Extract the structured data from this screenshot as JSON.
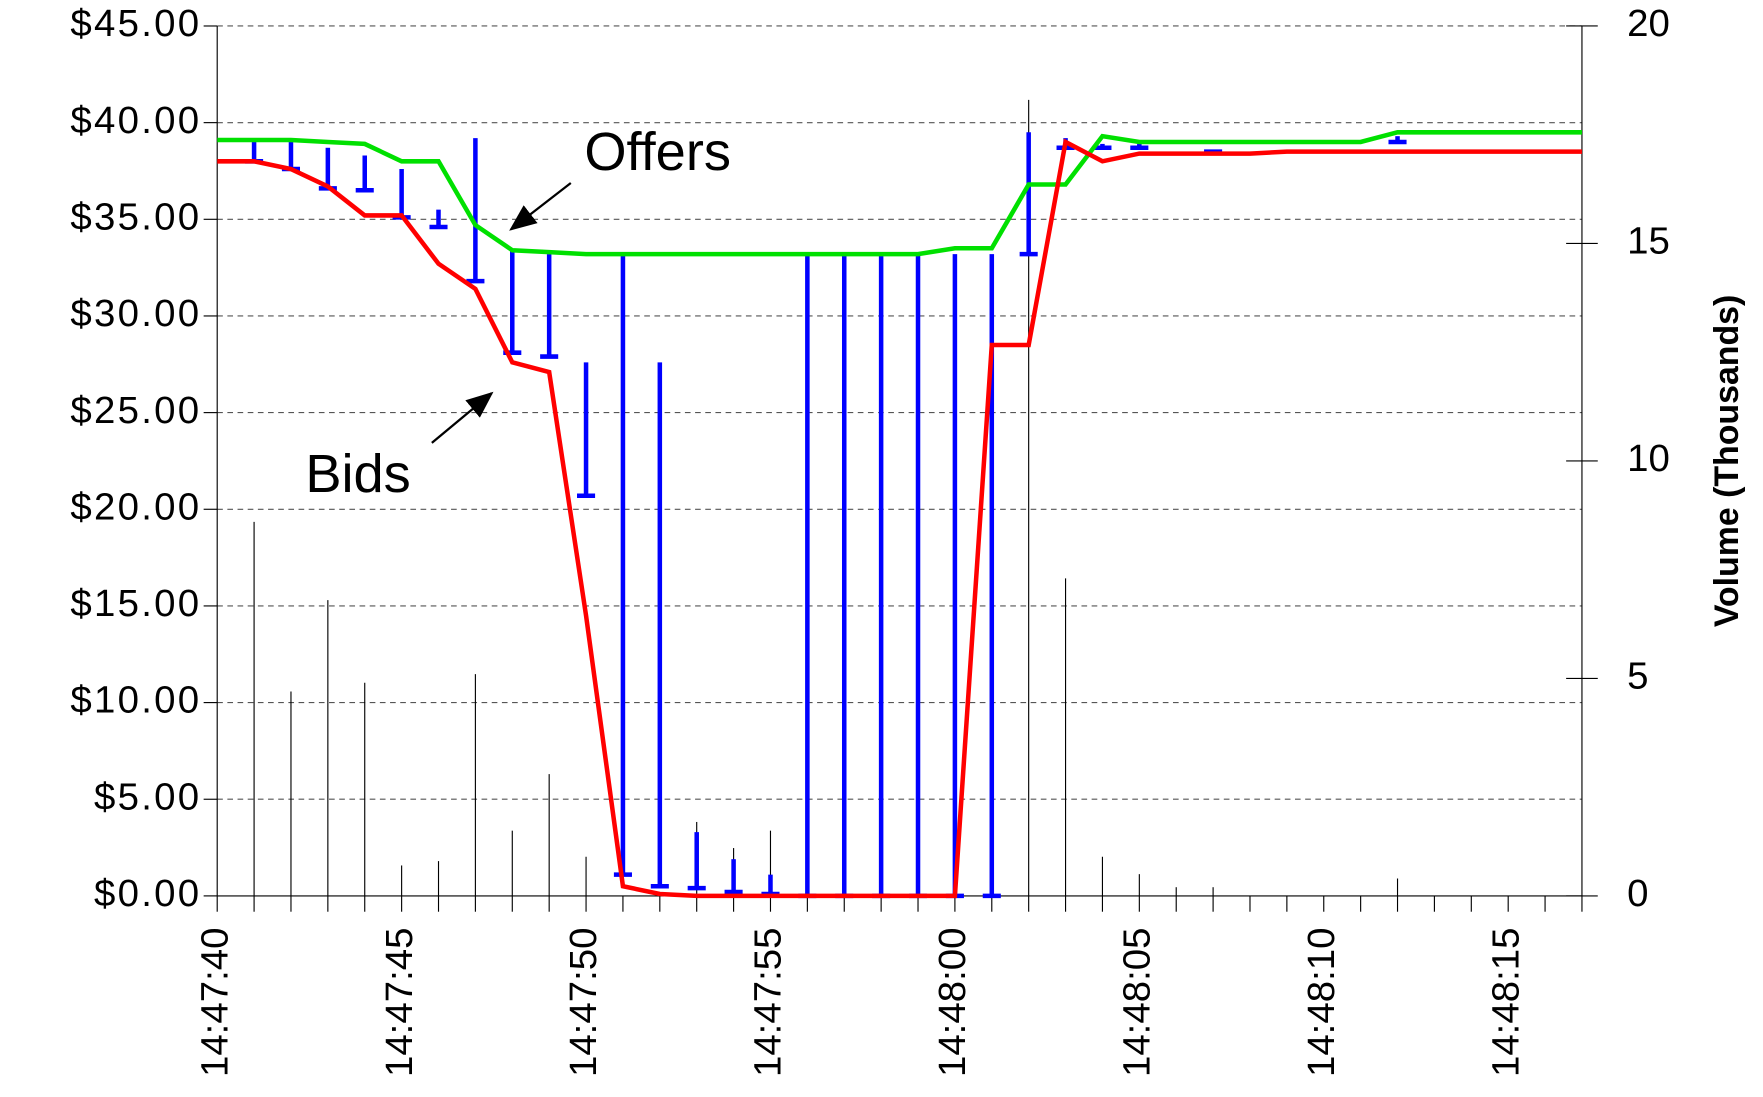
{
  "chart_data": {
    "type": "line",
    "categories": [
      "14:47:40",
      null,
      null,
      null,
      null,
      "14:47:45",
      null,
      null,
      null,
      null,
      "14:47:50",
      null,
      null,
      null,
      null,
      "14:47:55",
      null,
      null,
      null,
      null,
      "14:48:00",
      null,
      null,
      null,
      null,
      "14:48:05",
      null,
      null,
      null,
      null,
      "14:48:10",
      null,
      null,
      null,
      null,
      "14:48:15",
      null,
      null
    ],
    "series": [
      {
        "name": "Offers",
        "color": "#00e000",
        "values": [
          39.1,
          39.1,
          39.1,
          39.0,
          38.9,
          38.0,
          38.0,
          34.7,
          33.4,
          33.3,
          33.2,
          33.2,
          33.2,
          33.2,
          33.2,
          33.2,
          33.2,
          33.2,
          33.2,
          33.2,
          33.5,
          33.5,
          36.8,
          36.8,
          39.3,
          39.0,
          39.0,
          39.0,
          39.0,
          39.0,
          39.0,
          39.0,
          39.5,
          39.5,
          39.5,
          39.5,
          39.5,
          39.5
        ]
      },
      {
        "name": "Bids",
        "color": "#ff0000",
        "values": [
          38.0,
          38.0,
          37.6,
          36.7,
          35.2,
          35.2,
          32.7,
          31.4,
          27.6,
          27.1,
          14.5,
          0.5,
          0.1,
          0,
          0,
          0,
          0,
          0,
          0,
          0,
          0,
          28.5,
          28.5,
          39.0,
          38.0,
          38.4,
          38.4,
          38.4,
          38.4,
          38.5,
          38.5,
          38.5,
          38.5,
          38.5,
          38.5,
          38.5,
          38.5,
          38.5
        ]
      }
    ],
    "ranges": {
      "color": "#0000ff",
      "high": [
        null,
        39.1,
        39.0,
        38.7,
        38.3,
        37.6,
        35.5,
        39.2,
        33.4,
        33.2,
        27.6,
        33.2,
        27.6,
        3.3,
        1.9,
        1.1,
        33.2,
        33.2,
        33.2,
        33.2,
        33.2,
        33.2,
        39.5,
        39.2,
        38.9,
        38.9,
        null,
        38.6,
        null,
        null,
        null,
        null,
        39.3,
        null,
        null,
        null,
        null,
        null
      ],
      "low": [
        null,
        38.0,
        37.6,
        36.6,
        36.5,
        35.1,
        34.6,
        31.8,
        28.1,
        27.9,
        20.7,
        1.1,
        0.5,
        0.4,
        0.2,
        0.1,
        0,
        0,
        0,
        0,
        0,
        0,
        33.2,
        38.7,
        38.7,
        38.7,
        null,
        38.5,
        null,
        null,
        null,
        null,
        39.0,
        null,
        null,
        null,
        null,
        null
      ]
    },
    "volume": {
      "color": "#000000",
      "axis": "y2",
      "values": [
        0,
        8.6,
        4.7,
        6.8,
        4.9,
        0.7,
        0.8,
        5.1,
        1.5,
        2.8,
        0.9,
        0,
        0,
        1.7,
        1.1,
        1.5,
        0,
        0,
        0,
        0,
        0,
        0,
        18.3,
        7.3,
        0.9,
        0.5,
        0.2,
        0.2,
        0,
        0,
        0,
        0,
        0.4,
        0,
        0,
        0,
        0,
        0
      ]
    },
    "ylim": [
      0,
      45
    ],
    "yticks": [
      {
        "value": 0,
        "label": "$0.00"
      },
      {
        "value": 5,
        "label": "$5.00"
      },
      {
        "value": 10,
        "label": "$10.00"
      },
      {
        "value": 15,
        "label": "$15.00"
      },
      {
        "value": 20,
        "label": "$20.00"
      },
      {
        "value": 25,
        "label": "$25.00"
      },
      {
        "value": 30,
        "label": "$30.00"
      },
      {
        "value": 35,
        "label": "$35.00"
      },
      {
        "value": 40,
        "label": "$40.00"
      },
      {
        "value": 45,
        "label": "$45.00"
      }
    ],
    "y2lim": [
      0,
      20
    ],
    "y2ticks": [
      0,
      5,
      10,
      15,
      20
    ],
    "y2label": "Volume (Thousands)",
    "grid": true
  }
}
